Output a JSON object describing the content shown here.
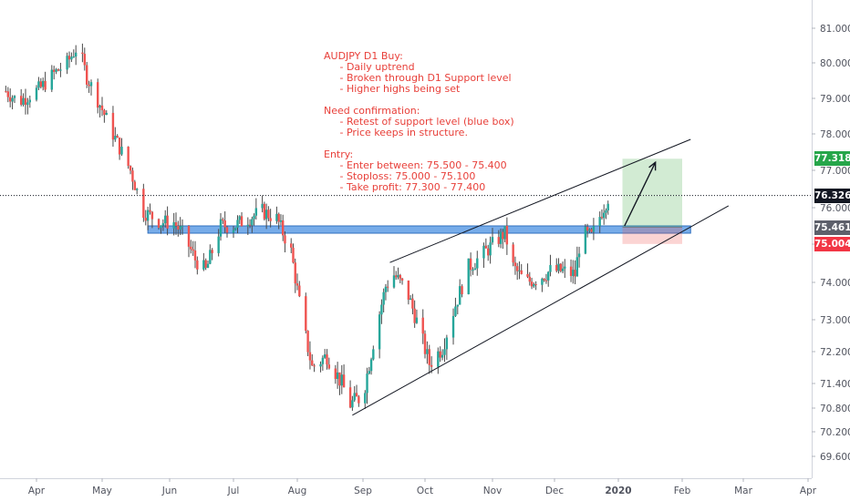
{
  "chart_data": {
    "type": "candlestick",
    "symbol": "AUDJPY",
    "timeframe": "D1",
    "x_ticks": [
      "Apr",
      "May",
      "Jun",
      "Jul",
      "Aug",
      "Sep",
      "Oct",
      "Nov",
      "Dec",
      "2020",
      "Feb",
      "Mar",
      "Apr"
    ],
    "y_ticks": [
      "81.000",
      "80.000",
      "79.000",
      "78.000",
      "77.000",
      "76.000",
      "75.000",
      "74.000",
      "73.000",
      "72.200",
      "71.400",
      "70.800",
      "70.200",
      "69.600"
    ],
    "ylim": [
      69.4,
      81.3
    ],
    "grid": false,
    "price_path": [
      {
        "date": "2019-03-18",
        "price": 79.2
      },
      {
        "date": "2019-03-24",
        "price": 78.9
      },
      {
        "date": "2019-04-03",
        "price": 79.3
      },
      {
        "date": "2019-04-09",
        "price": 79.7
      },
      {
        "date": "2019-04-15",
        "price": 80.0
      },
      {
        "date": "2019-04-20",
        "price": 80.5
      },
      {
        "date": "2019-04-24",
        "price": 79.6
      },
      {
        "date": "2019-04-28",
        "price": 79.1
      },
      {
        "date": "2019-05-06",
        "price": 78.0
      },
      {
        "date": "2019-05-14",
        "price": 77.0
      },
      {
        "date": "2019-05-20",
        "price": 75.9
      },
      {
        "date": "2019-05-28",
        "price": 75.6
      },
      {
        "date": "2019-06-03",
        "price": 75.6
      },
      {
        "date": "2019-06-08",
        "price": 75.2
      },
      {
        "date": "2019-06-13",
        "price": 74.6
      },
      {
        "date": "2019-06-18",
        "price": 74.3
      },
      {
        "date": "2019-06-25",
        "price": 75.5
      },
      {
        "date": "2019-07-01",
        "price": 75.5
      },
      {
        "date": "2019-07-08",
        "price": 75.7
      },
      {
        "date": "2019-07-15",
        "price": 75.9
      },
      {
        "date": "2019-07-22",
        "price": 75.7
      },
      {
        "date": "2019-07-29",
        "price": 74.8
      },
      {
        "date": "2019-08-04",
        "price": 72.8
      },
      {
        "date": "2019-08-08",
        "price": 71.8
      },
      {
        "date": "2019-08-15",
        "price": 72.1
      },
      {
        "date": "2019-08-22",
        "price": 71.4
      },
      {
        "date": "2019-08-26",
        "price": 70.9
      },
      {
        "date": "2019-09-01",
        "price": 71.1
      },
      {
        "date": "2019-09-07",
        "price": 72.7
      },
      {
        "date": "2019-09-12",
        "price": 73.9
      },
      {
        "date": "2019-09-16",
        "price": 74.2
      },
      {
        "date": "2019-09-22",
        "price": 73.8
      },
      {
        "date": "2019-09-28",
        "price": 72.8
      },
      {
        "date": "2019-10-03",
        "price": 71.9
      },
      {
        "date": "2019-10-09",
        "price": 72.3
      },
      {
        "date": "2019-10-15",
        "price": 73.4
      },
      {
        "date": "2019-10-21",
        "price": 74.4
      },
      {
        "date": "2019-10-27",
        "price": 74.7
      },
      {
        "date": "2019-11-03",
        "price": 75.1
      },
      {
        "date": "2019-11-07",
        "price": 75.3
      },
      {
        "date": "2019-11-11",
        "price": 74.4
      },
      {
        "date": "2019-11-17",
        "price": 74.0
      },
      {
        "date": "2019-11-23",
        "price": 74.1
      },
      {
        "date": "2019-11-29",
        "price": 74.3
      },
      {
        "date": "2019-12-05",
        "price": 74.3
      },
      {
        "date": "2019-12-11",
        "price": 74.2
      },
      {
        "date": "2019-12-14",
        "price": 75.3
      },
      {
        "date": "2019-12-19",
        "price": 75.2
      },
      {
        "date": "2019-12-24",
        "price": 75.9
      },
      {
        "date": "2019-12-28",
        "price": 76.4
      }
    ],
    "last_price": 76.326,
    "last_price_label": "76.326",
    "support_zone": {
      "low": 75.3,
      "high": 75.5,
      "from": "2019-05-22",
      "to": "2020-02-05"
    },
    "channel": {
      "lower": {
        "from": {
          "date": "2019-08-27",
          "price": 70.62
        },
        "to": {
          "date": "2020-02-23",
          "price": 76.05
        }
      },
      "upper": {
        "from": {
          "date": "2019-09-14",
          "price": 74.52
        },
        "to": {
          "date": "2020-02-05",
          "price": 77.85
        }
      }
    },
    "position": {
      "entry_label": "75.461",
      "target_label": "77.318",
      "stop_label": "75.004",
      "entry": 75.461,
      "target": 77.318,
      "stop": 75.004,
      "from": "2020-01-03",
      "to": "2020-02-01"
    },
    "projection_arrow": {
      "from": {
        "date": "2020-01-04",
        "price": 75.5
      },
      "to": {
        "date": "2020-01-19",
        "price": 77.22
      }
    },
    "colors": {
      "up": "#26a69a",
      "down": "#ef5350",
      "support": "#4a90e2",
      "target": "#4caf50",
      "stop": "#ef5350",
      "last": "#131722",
      "axis_text": "#50535e"
    }
  },
  "annotation": {
    "lines": [
      "AUDJPY D1 Buy:",
      "     - Daily uptrend",
      "     - Broken through D1 Support level",
      "     - Higher highs being set",
      "",
      "Need confirmation:",
      "     - Retest of support level (blue box)",
      "     - Price keeps in structure.",
      "",
      "Entry:",
      "     - Enter between: 75.500 - 75.400",
      "     - Stoploss: 75.000 - 75.100",
      "     - Take profit: 77.300 - 77.400"
    ]
  }
}
